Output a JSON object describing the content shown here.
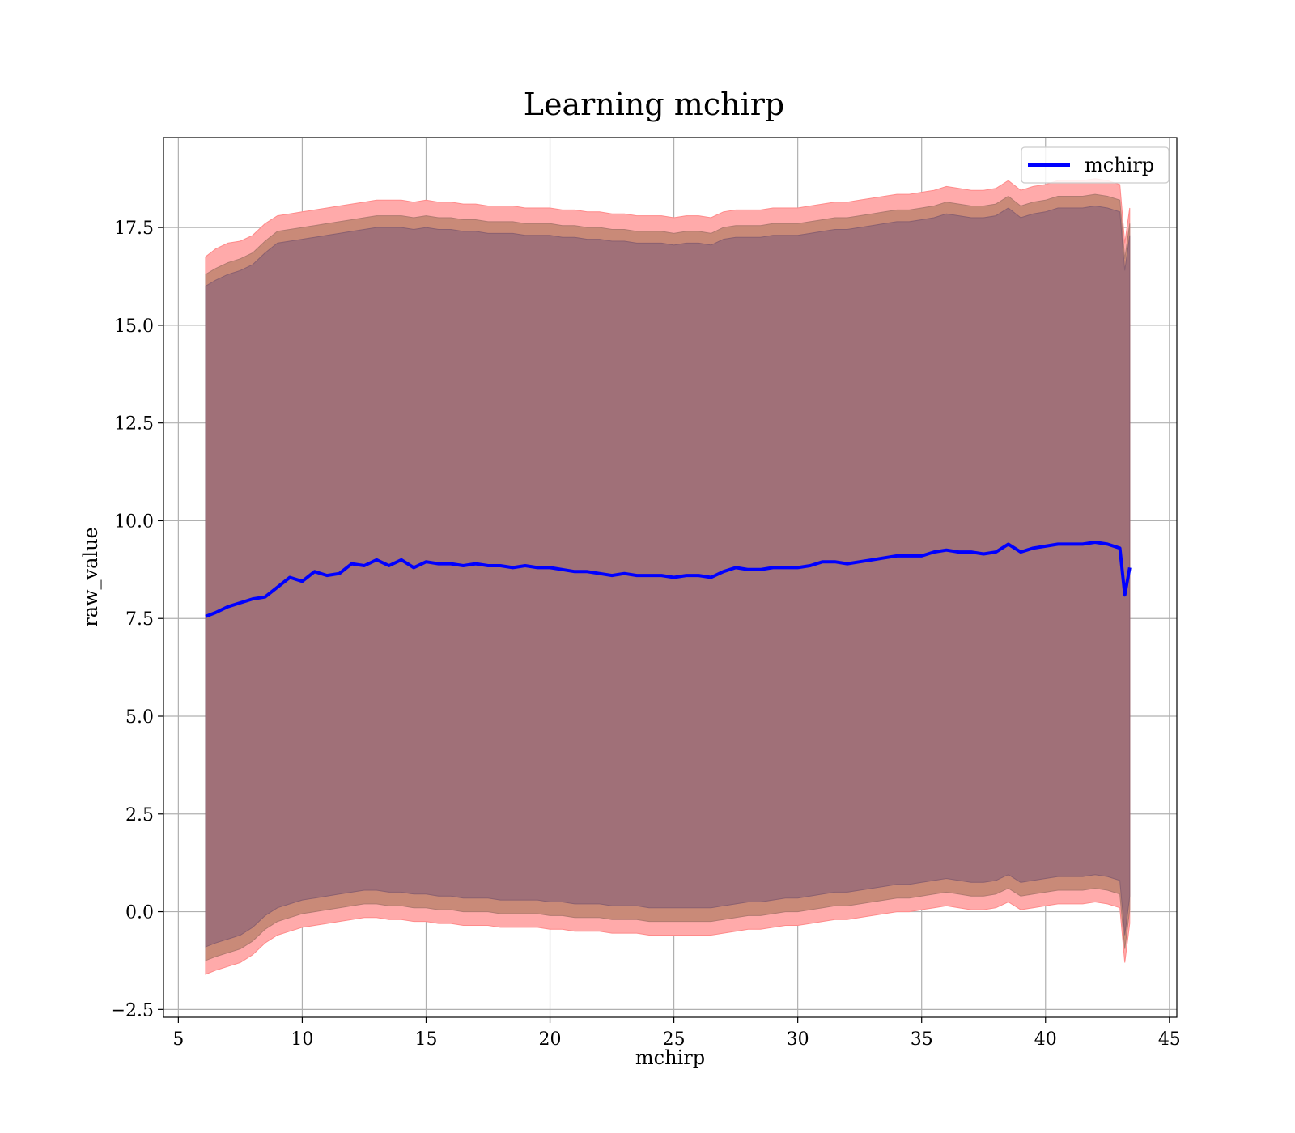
{
  "chart_data": {
    "type": "line",
    "title": "Learning mchirp",
    "xlabel": "mchirp",
    "ylabel": "raw_value",
    "xlim": [
      4.4,
      45.3
    ],
    "ylim": [
      -2.7,
      19.8
    ],
    "xticks": [
      5,
      10,
      15,
      20,
      25,
      30,
      35,
      40,
      45
    ],
    "yticks": [
      -2.5,
      0.0,
      2.5,
      5.0,
      7.5,
      10.0,
      12.5,
      15.0,
      17.5
    ],
    "xtick_labels": [
      "5",
      "10",
      "15",
      "20",
      "25",
      "30",
      "35",
      "40",
      "45"
    ],
    "ytick_labels": [
      "−2.5",
      "0.0",
      "2.5",
      "5.0",
      "7.5",
      "10.0",
      "12.5",
      "15.0",
      "17.5"
    ],
    "grid": true,
    "legend_position": "top-right",
    "series": [
      {
        "name": "mchirp",
        "color": "#0000ff",
        "x": [
          6.1,
          6.5,
          7.0,
          7.5,
          8.0,
          8.5,
          9.0,
          9.5,
          10.0,
          10.5,
          11.0,
          11.5,
          12.0,
          12.5,
          13.0,
          13.5,
          14.0,
          14.5,
          15.0,
          15.5,
          16.0,
          16.5,
          17.0,
          17.5,
          18.0,
          18.5,
          19.0,
          19.5,
          20.0,
          20.5,
          21.0,
          21.5,
          22.0,
          22.5,
          23.0,
          23.5,
          24.0,
          24.5,
          25.0,
          25.5,
          26.0,
          26.5,
          27.0,
          27.5,
          28.0,
          28.5,
          29.0,
          29.5,
          30.0,
          30.5,
          31.0,
          31.5,
          32.0,
          32.5,
          33.0,
          33.5,
          34.0,
          34.5,
          35.0,
          35.5,
          36.0,
          36.5,
          37.0,
          37.5,
          38.0,
          38.5,
          39.0,
          39.5,
          40.0,
          40.5,
          41.0,
          41.5,
          42.0,
          42.5,
          43.0,
          43.2,
          43.4
        ],
        "values": [
          7.55,
          7.65,
          7.8,
          7.9,
          8.0,
          8.05,
          8.3,
          8.55,
          8.45,
          8.7,
          8.6,
          8.65,
          8.9,
          8.85,
          9.0,
          8.85,
          9.0,
          8.8,
          8.95,
          8.9,
          8.9,
          8.85,
          8.9,
          8.85,
          8.85,
          8.8,
          8.85,
          8.8,
          8.8,
          8.75,
          8.7,
          8.7,
          8.65,
          8.6,
          8.65,
          8.6,
          8.6,
          8.6,
          8.55,
          8.6,
          8.6,
          8.55,
          8.7,
          8.8,
          8.75,
          8.75,
          8.8,
          8.8,
          8.8,
          8.85,
          8.95,
          8.95,
          8.9,
          8.95,
          9.0,
          9.05,
          9.1,
          9.1,
          9.1,
          9.2,
          9.25,
          9.2,
          9.2,
          9.15,
          9.2,
          9.4,
          9.2,
          9.3,
          9.35,
          9.4,
          9.4,
          9.4,
          9.45,
          9.4,
          9.3,
          8.1,
          8.8
        ],
        "band_outer_upper": [
          16.75,
          16.95,
          17.1,
          17.15,
          17.3,
          17.6,
          17.8,
          17.85,
          17.9,
          17.95,
          18.0,
          18.05,
          18.1,
          18.15,
          18.2,
          18.2,
          18.2,
          18.15,
          18.2,
          18.15,
          18.15,
          18.1,
          18.1,
          18.05,
          18.05,
          18.05,
          18.0,
          18.0,
          18.0,
          17.95,
          17.95,
          17.9,
          17.9,
          17.85,
          17.85,
          17.8,
          17.8,
          17.8,
          17.75,
          17.8,
          17.8,
          17.75,
          17.9,
          17.95,
          17.95,
          17.95,
          18.0,
          18.0,
          18.0,
          18.05,
          18.1,
          18.15,
          18.15,
          18.2,
          18.25,
          18.3,
          18.35,
          18.35,
          18.4,
          18.45,
          18.55,
          18.5,
          18.45,
          18.45,
          18.5,
          18.7,
          18.45,
          18.55,
          18.6,
          18.7,
          18.7,
          18.7,
          18.75,
          18.7,
          18.6,
          17.1,
          18.0
        ],
        "band_mid_upper": [
          16.3,
          16.45,
          16.6,
          16.7,
          16.85,
          17.15,
          17.4,
          17.45,
          17.5,
          17.55,
          17.6,
          17.65,
          17.7,
          17.75,
          17.8,
          17.8,
          17.8,
          17.75,
          17.8,
          17.75,
          17.75,
          17.7,
          17.7,
          17.65,
          17.65,
          17.65,
          17.6,
          17.6,
          17.6,
          17.55,
          17.55,
          17.5,
          17.5,
          17.45,
          17.45,
          17.4,
          17.4,
          17.4,
          17.35,
          17.4,
          17.4,
          17.35,
          17.5,
          17.55,
          17.55,
          17.55,
          17.6,
          17.6,
          17.6,
          17.65,
          17.7,
          17.75,
          17.75,
          17.8,
          17.85,
          17.9,
          17.95,
          17.95,
          18.0,
          18.05,
          18.15,
          18.1,
          18.05,
          18.05,
          18.1,
          18.3,
          18.05,
          18.15,
          18.2,
          18.3,
          18.3,
          18.3,
          18.35,
          18.3,
          18.2,
          16.7,
          17.6
        ],
        "band_inner_upper": [
          16.0,
          16.15,
          16.3,
          16.4,
          16.55,
          16.85,
          17.1,
          17.15,
          17.2,
          17.25,
          17.3,
          17.35,
          17.4,
          17.45,
          17.5,
          17.5,
          17.5,
          17.45,
          17.5,
          17.45,
          17.45,
          17.4,
          17.4,
          17.35,
          17.35,
          17.35,
          17.3,
          17.3,
          17.3,
          17.25,
          17.25,
          17.2,
          17.2,
          17.15,
          17.15,
          17.1,
          17.1,
          17.1,
          17.05,
          17.1,
          17.1,
          17.05,
          17.2,
          17.25,
          17.25,
          17.25,
          17.3,
          17.3,
          17.3,
          17.35,
          17.4,
          17.45,
          17.45,
          17.5,
          17.55,
          17.6,
          17.65,
          17.65,
          17.7,
          17.75,
          17.85,
          17.8,
          17.75,
          17.75,
          17.8,
          18.0,
          17.75,
          17.85,
          17.9,
          18.0,
          18.0,
          18.0,
          18.05,
          18.0,
          17.9,
          16.4,
          17.3
        ],
        "band_inner_lower": [
          -0.9,
          -0.8,
          -0.7,
          -0.6,
          -0.4,
          -0.1,
          0.1,
          0.2,
          0.3,
          0.35,
          0.4,
          0.45,
          0.5,
          0.55,
          0.55,
          0.5,
          0.5,
          0.45,
          0.45,
          0.4,
          0.4,
          0.35,
          0.35,
          0.35,
          0.3,
          0.3,
          0.3,
          0.3,
          0.25,
          0.25,
          0.2,
          0.2,
          0.2,
          0.15,
          0.15,
          0.15,
          0.1,
          0.1,
          0.1,
          0.1,
          0.1,
          0.1,
          0.15,
          0.2,
          0.25,
          0.25,
          0.3,
          0.35,
          0.35,
          0.4,
          0.45,
          0.5,
          0.5,
          0.55,
          0.6,
          0.65,
          0.7,
          0.7,
          0.75,
          0.8,
          0.85,
          0.8,
          0.75,
          0.75,
          0.8,
          0.95,
          0.75,
          0.8,
          0.85,
          0.9,
          0.9,
          0.9,
          0.95,
          0.9,
          0.8,
          -0.6,
          0.4
        ],
        "band_mid_lower": [
          -1.25,
          -1.15,
          -1.05,
          -0.95,
          -0.75,
          -0.45,
          -0.25,
          -0.15,
          -0.05,
          0.0,
          0.05,
          0.1,
          0.15,
          0.2,
          0.2,
          0.15,
          0.15,
          0.1,
          0.1,
          0.05,
          0.05,
          0.0,
          0.0,
          0.0,
          -0.05,
          -0.05,
          -0.05,
          -0.05,
          -0.1,
          -0.1,
          -0.15,
          -0.15,
          -0.15,
          -0.2,
          -0.2,
          -0.2,
          -0.25,
          -0.25,
          -0.25,
          -0.25,
          -0.25,
          -0.25,
          -0.2,
          -0.15,
          -0.1,
          -0.1,
          -0.05,
          0.0,
          0.0,
          0.05,
          0.1,
          0.15,
          0.15,
          0.2,
          0.25,
          0.3,
          0.35,
          0.35,
          0.4,
          0.45,
          0.5,
          0.45,
          0.4,
          0.4,
          0.45,
          0.6,
          0.4,
          0.45,
          0.5,
          0.55,
          0.55,
          0.55,
          0.6,
          0.55,
          0.45,
          -0.95,
          0.05
        ],
        "band_outer_lower": [
          -1.6,
          -1.5,
          -1.4,
          -1.3,
          -1.1,
          -0.8,
          -0.6,
          -0.5,
          -0.4,
          -0.35,
          -0.3,
          -0.25,
          -0.2,
          -0.15,
          -0.15,
          -0.2,
          -0.2,
          -0.25,
          -0.25,
          -0.3,
          -0.3,
          -0.35,
          -0.35,
          -0.35,
          -0.4,
          -0.4,
          -0.4,
          -0.4,
          -0.45,
          -0.45,
          -0.5,
          -0.5,
          -0.5,
          -0.55,
          -0.55,
          -0.55,
          -0.6,
          -0.6,
          -0.6,
          -0.6,
          -0.6,
          -0.6,
          -0.55,
          -0.5,
          -0.45,
          -0.45,
          -0.4,
          -0.35,
          -0.35,
          -0.3,
          -0.25,
          -0.2,
          -0.2,
          -0.15,
          -0.1,
          -0.05,
          0.0,
          0.0,
          0.05,
          0.1,
          0.15,
          0.1,
          0.05,
          0.05,
          0.1,
          0.25,
          0.05,
          0.1,
          0.15,
          0.2,
          0.2,
          0.2,
          0.25,
          0.2,
          0.1,
          -1.3,
          -0.3
        ]
      }
    ],
    "band_colors": {
      "outer": "#ffaaaa",
      "mid": "#c98a78",
      "inner": "#a07078"
    },
    "legend": {
      "label": "mchirp"
    }
  }
}
